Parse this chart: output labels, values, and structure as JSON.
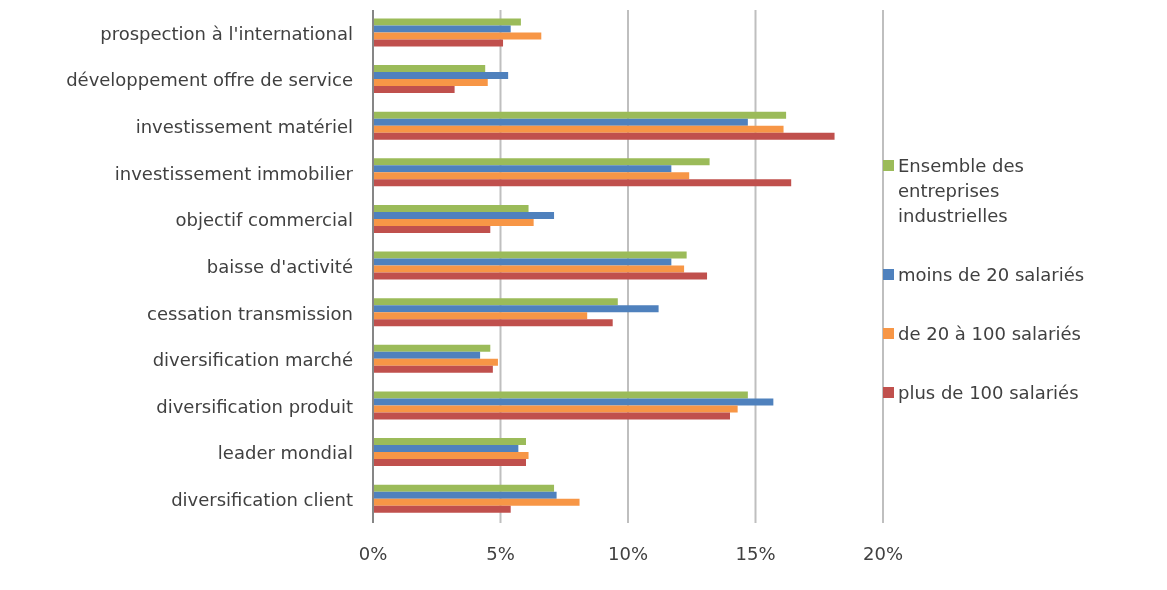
{
  "chart_data": {
    "type": "bar",
    "orientation": "horizontal",
    "categories": [
      "prospection à l'international",
      "développement offre de service",
      "investissement matériel",
      "investissement immobilier",
      "objectif commercial",
      "baisse d'activité",
      "cessation transmission",
      "diversification marché",
      "diversification produit",
      "leader mondial",
      "diversification client"
    ],
    "series": [
      {
        "name": "Ensemble des entreprises industrielles",
        "color": "#9bbb59",
        "values": [
          5.8,
          4.4,
          16.2,
          13.2,
          6.1,
          12.3,
          9.6,
          4.6,
          14.7,
          6.0,
          7.1
        ]
      },
      {
        "name": "moins de 20 salariés",
        "color": "#4f81bd",
        "values": [
          5.4,
          5.3,
          14.7,
          11.7,
          7.1,
          11.7,
          11.2,
          4.2,
          15.7,
          5.7,
          7.2
        ]
      },
      {
        "name": "de 20 à 100 salariés",
        "color": "#f79646",
        "values": [
          6.6,
          4.5,
          16.1,
          12.4,
          6.3,
          12.2,
          8.4,
          4.9,
          14.3,
          6.1,
          8.1
        ]
      },
      {
        "name": "plus de 100 salariés",
        "color": "#c0504d",
        "values": [
          5.1,
          3.2,
          18.1,
          16.4,
          4.6,
          13.1,
          9.4,
          4.7,
          14.0,
          6.0,
          5.4
        ]
      }
    ],
    "xlim": [
      0,
      20
    ],
    "xticks": [
      {
        "value": 0,
        "label": "0%"
      },
      {
        "value": 5,
        "label": "5%"
      },
      {
        "value": 10,
        "label": "10%"
      },
      {
        "value": 15,
        "label": "15%"
      },
      {
        "value": 20,
        "label": "20%"
      }
    ],
    "grid": "x",
    "legend": "right"
  }
}
